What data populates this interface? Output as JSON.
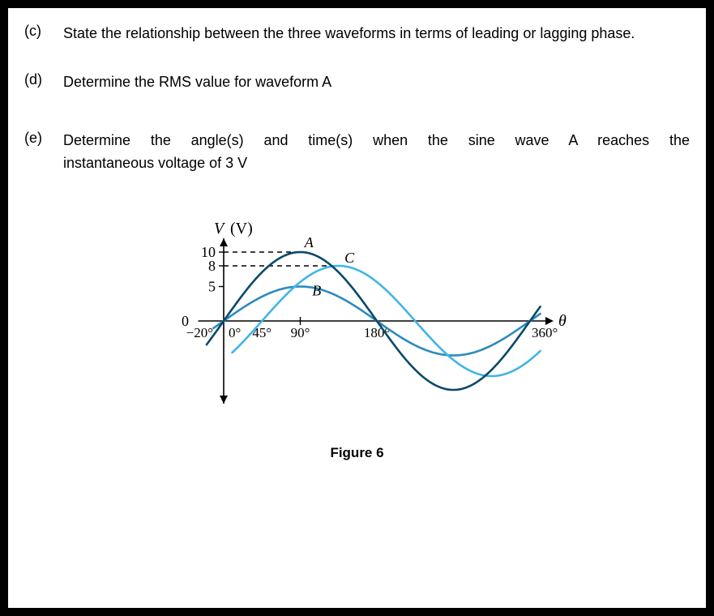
{
  "questions": {
    "c": {
      "label": "(c)",
      "text": "State the relationship between the three waveforms in terms of leading or lagging phase."
    },
    "d": {
      "label": "(d)",
      "text": "Determine the RMS value for waveform A"
    },
    "e": {
      "label": "(e)",
      "line1": "Determine  the  angle(s)  and  time(s)  when  the  sine  wave  A  reaches  the",
      "line2": "instantaneous voltage of 3 V"
    }
  },
  "figure": {
    "caption": "Figure 6",
    "y_axis_label": "V (V)",
    "x_axis_label": "θ",
    "y_ticks": [
      {
        "value": 10,
        "label": "10"
      },
      {
        "value": 8,
        "label": "8"
      },
      {
        "value": 5,
        "label": "5"
      }
    ],
    "origin_label": "0",
    "x_ticks": [
      {
        "deg": -20,
        "label": "−20°"
      },
      {
        "deg": 0,
        "label": "0°"
      },
      {
        "deg": 45,
        "label": "45°"
      },
      {
        "deg": 90,
        "label": "90°"
      },
      {
        "deg": 180,
        "label": "180°"
      },
      {
        "deg": 360,
        "label": "360°"
      }
    ],
    "waves": {
      "A": {
        "amplitude": 10,
        "phase_deg": 0,
        "color": "#0a4a6a",
        "label": "A",
        "stroke_width": 2.6
      },
      "B": {
        "amplitude": 5,
        "phase_deg": 0,
        "color": "#2d8bbd",
        "label": "B",
        "stroke_width": 2.6
      },
      "C": {
        "amplitude": 8,
        "phase_deg": -45,
        "color": "#3fb5e7",
        "label": "C",
        "stroke_width": 2.6
      }
    },
    "dash_style": "6,5",
    "axis_color": "#000000",
    "background": "#ffffff",
    "font_family_serif": "Georgia, 'Times New Roman', serif"
  }
}
